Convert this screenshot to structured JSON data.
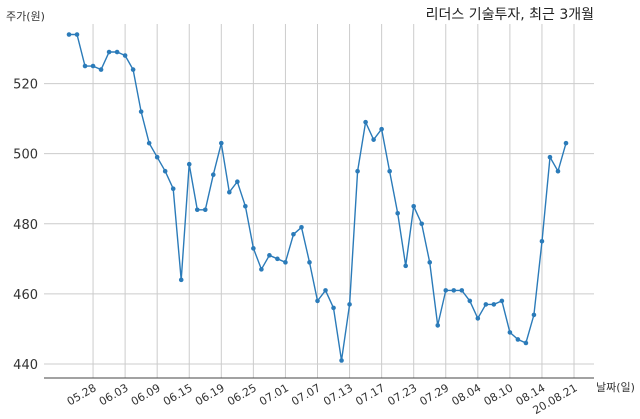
{
  "chart_data": {
    "type": "line",
    "title": "리더스 기술투자, 최근 3개월",
    "ylabel": "주가(원)",
    "xlabel": "날짜(일)",
    "ylim": [
      436,
      537
    ],
    "y_ticks": [
      440,
      460,
      480,
      500,
      520
    ],
    "x_tick_labels": [
      "05.28",
      "06.03",
      "06.09",
      "06.15",
      "06.19",
      "06.25",
      "07.01",
      "07.07",
      "07.13",
      "07.17",
      "07.23",
      "07.29",
      "08.04",
      "08.10",
      "08.14",
      "20.08.21"
    ],
    "x_tick_positions": [
      3,
      7,
      11,
      15,
      19,
      23,
      27,
      31,
      35,
      39,
      43,
      47,
      51,
      55,
      59,
      63
    ],
    "grid": true,
    "series": [
      {
        "color": "#2b7bb9",
        "values": [
          534,
          534,
          525,
          525,
          524,
          529,
          529,
          528,
          524,
          512,
          503,
          499,
          495,
          490,
          464,
          497,
          484,
          484,
          494,
          503,
          489,
          492,
          485,
          473,
          467,
          471,
          470,
          469,
          477,
          479,
          469,
          458,
          461,
          456,
          441,
          457,
          495,
          509,
          504,
          507,
          495,
          483,
          468,
          485,
          480,
          469,
          451,
          461,
          461,
          461,
          458,
          453,
          457,
          457,
          458,
          449,
          447,
          446,
          454,
          475,
          499,
          495,
          503
        ]
      }
    ]
  }
}
